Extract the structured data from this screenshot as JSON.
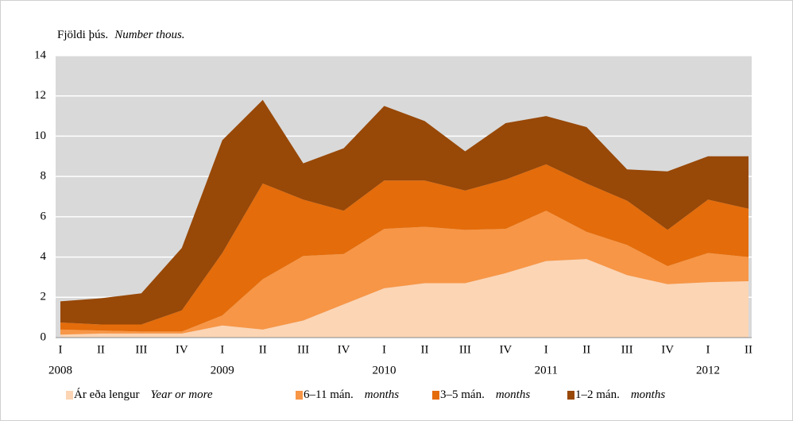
{
  "chart_data": {
    "type": "stacked_area",
    "axis_label": "Fjöldi þús.",
    "axis_label_en": "Number thous.",
    "categories": [
      "I",
      "II",
      "III",
      "IV",
      "I",
      "II",
      "III",
      "IV",
      "I",
      "II",
      "III",
      "IV",
      "I",
      "II",
      "III",
      "IV",
      "I",
      "II"
    ],
    "category_groups": [
      "2008",
      null,
      null,
      null,
      "2009",
      null,
      null,
      null,
      "2010",
      null,
      null,
      null,
      "2011",
      null,
      null,
      null,
      "2012",
      null
    ],
    "series": [
      {
        "name": "Ár eða lengur",
        "name_en": "Year or more",
        "color": "#fcd5b5",
        "values": [
          0.15,
          0.2,
          0.2,
          0.2,
          0.6,
          0.4,
          0.85,
          1.65,
          2.45,
          2.7,
          2.7,
          3.2,
          3.8,
          3.9,
          3.1,
          2.65,
          2.75,
          2.8
        ]
      },
      {
        "name": "6–11 mán.",
        "name_en": "months",
        "color": "#f79646",
        "values": [
          0.25,
          0.15,
          0.1,
          0.1,
          0.5,
          2.5,
          3.2,
          2.5,
          2.95,
          2.8,
          2.65,
          2.2,
          2.5,
          1.35,
          1.5,
          0.9,
          1.45,
          1.2
        ]
      },
      {
        "name": "3–5 mán.",
        "name_en": "months",
        "color": "#e46c0a",
        "values": [
          0.35,
          0.3,
          0.35,
          1.05,
          3.1,
          4.75,
          2.8,
          2.15,
          2.4,
          2.3,
          1.95,
          2.45,
          2.3,
          2.4,
          2.2,
          1.8,
          2.65,
          2.4
        ]
      },
      {
        "name": "1–2 mán.",
        "name_en": "months",
        "color": "#984807",
        "values": [
          1.05,
          1.3,
          1.55,
          3.1,
          5.6,
          4.15,
          1.8,
          3.1,
          3.7,
          2.95,
          1.95,
          2.8,
          2.4,
          2.8,
          1.55,
          2.9,
          2.15,
          2.6
        ]
      }
    ],
    "ylim": [
      0,
      14
    ],
    "yticks": [
      0,
      2,
      4,
      6,
      8,
      10,
      12,
      14
    ],
    "grid": true,
    "plot_background": "#d9d9d9"
  }
}
